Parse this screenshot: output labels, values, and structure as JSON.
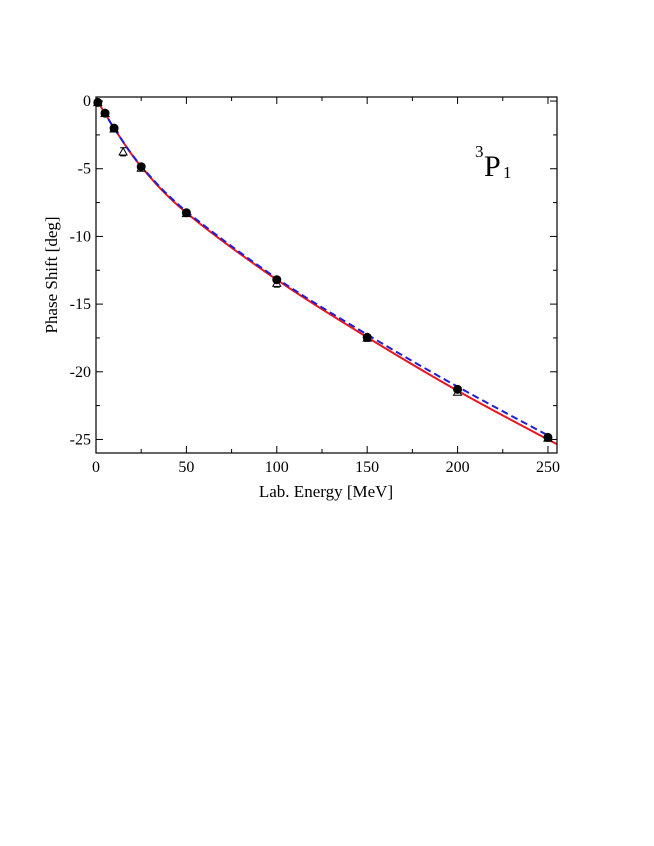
{
  "chart_data": {
    "type": "line",
    "title": "",
    "annotation": {
      "sup": "3",
      "main": "P",
      "sub": "1"
    },
    "xlabel": "Lab. Energy  [MeV]",
    "ylabel": "Phase Shift  [deg]",
    "xlim": [
      0,
      255
    ],
    "ylim": [
      -26,
      0.3
    ],
    "xticks": [
      0,
      50,
      100,
      150,
      200,
      250
    ],
    "yticks": [
      0,
      -5,
      -10,
      -15,
      -20,
      -25
    ],
    "series": [
      {
        "name": "solid-red-curve",
        "style": "solid",
        "color": "#e8161e",
        "x": [
          0,
          1,
          5,
          10,
          25,
          50,
          100,
          150,
          200,
          250,
          255
        ],
        "y": [
          0,
          -0.1,
          -0.9,
          -2.0,
          -4.85,
          -8.25,
          -13.2,
          -17.45,
          -21.4,
          -25.0,
          -25.3
        ]
      },
      {
        "name": "dashed-blue-curve",
        "style": "dashed",
        "color": "#1f1fd6",
        "x": [
          0,
          1,
          5,
          10,
          25,
          50,
          100,
          150,
          200,
          250
        ],
        "y": [
          0,
          -0.1,
          -0.9,
          -2.0,
          -4.8,
          -8.15,
          -13.1,
          -17.25,
          -21.1,
          -24.7
        ]
      },
      {
        "name": "filled-circles",
        "style": "marker-circle",
        "color": "#000000",
        "x": [
          1,
          5,
          10,
          25,
          50,
          100,
          150,
          200,
          250
        ],
        "y": [
          -0.1,
          -0.9,
          -2.0,
          -4.85,
          -8.25,
          -13.2,
          -17.45,
          -21.3,
          -24.85
        ]
      },
      {
        "name": "open-triangles",
        "style": "marker-triangle",
        "color": "#000000",
        "x": [
          1,
          5,
          10,
          15,
          25,
          50,
          100,
          150,
          200,
          250
        ],
        "y": [
          -0.1,
          -0.9,
          -2.05,
          -3.75,
          -4.95,
          -8.3,
          -13.45,
          -17.5,
          -21.5,
          -24.9
        ],
        "err": [
          0.0,
          0.0,
          0.0,
          0.3,
          0.1,
          0.1,
          0.3,
          0.25,
          0.0,
          0.0
        ]
      }
    ]
  }
}
